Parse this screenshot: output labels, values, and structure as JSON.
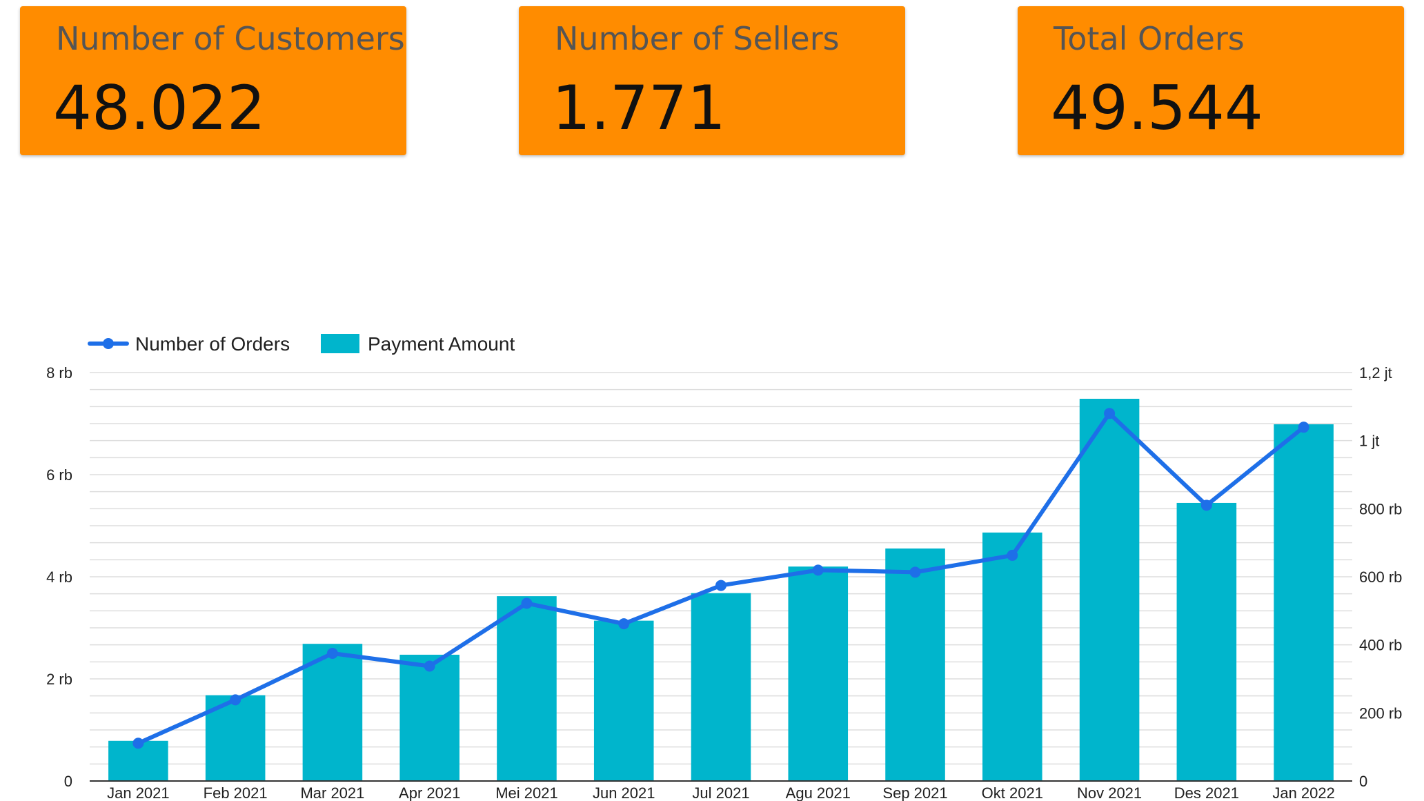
{
  "kpis": [
    {
      "title": "Number of Customers",
      "value": "48.022"
    },
    {
      "title": "Number of Sellers",
      "value": "1.771"
    },
    {
      "title": "Total Orders",
      "value": "49.544"
    }
  ],
  "colors": {
    "card": "#FF8C00",
    "bar": "#00B5CC",
    "line": "#1E6FE8",
    "grid": "#DDDDDD",
    "axis": "#333333"
  },
  "chart_data": {
    "type": "bar",
    "categories": [
      "Jan 2021",
      "Feb 2021",
      "Mar 2021",
      "Apr 2021",
      "Mei 2021",
      "Jun 2021",
      "Jul 2021",
      "Agu 2021",
      "Sep 2021",
      "Okt 2021",
      "Nov 2021",
      "Des 2021",
      "Jan 2022"
    ],
    "series": [
      {
        "name": "Payment Amount",
        "type": "bar",
        "axis": "right",
        "values": [
          118000,
          252000,
          403000,
          371000,
          543000,
          471000,
          552000,
          630000,
          683000,
          730000,
          1123000,
          817000,
          1048000
        ]
      },
      {
        "name": "Number of Orders",
        "type": "line",
        "axis": "left",
        "values": [
          740,
          1590,
          2500,
          2250,
          3480,
          3080,
          3830,
          4130,
          4090,
          4420,
          7200,
          5400,
          6930
        ]
      }
    ],
    "y_left": {
      "ylim": [
        0,
        8000
      ],
      "ticks": [
        0,
        2000,
        4000,
        6000,
        8000
      ],
      "tick_labels": [
        "0",
        "2 rb",
        "4 rb",
        "6 rb",
        "8 rb"
      ]
    },
    "y_right": {
      "ylim": [
        0,
        1200000
      ],
      "ticks": [
        0,
        200000,
        400000,
        600000,
        800000,
        1000000,
        1200000
      ],
      "tick_labels": [
        "0",
        "200 rb",
        "400 rb",
        "600 rb",
        "800 rb",
        "1 jt",
        "1,2 jt"
      ]
    },
    "grid": true,
    "legend": "top-left"
  }
}
